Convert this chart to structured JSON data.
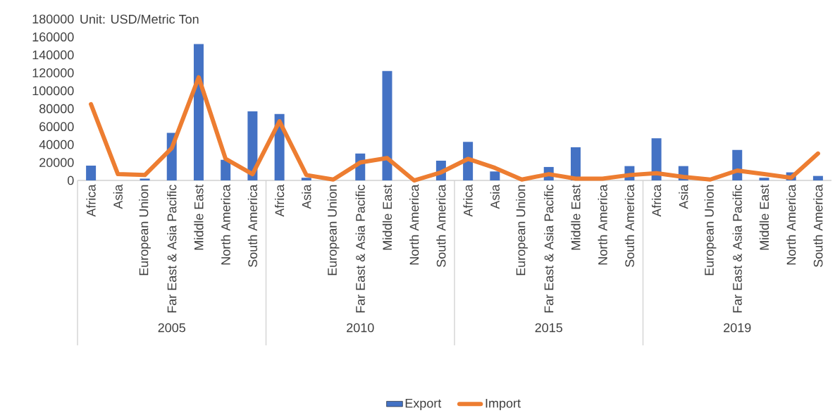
{
  "chart_data": {
    "type": "bar",
    "ylabel": "Unit: USD/Metric Ton",
    "categories": [
      "Africa",
      "Asia",
      "European Union",
      "Far East & Asia Pacific",
      "Middle East",
      "North America",
      "South America",
      "Africa",
      "Asia",
      "European Union",
      "Far East & Asia Pacific",
      "Middle East",
      "North America",
      "South America",
      "Africa",
      "Asia",
      "European Union",
      "Far East & Asia Pacific",
      "Middle East",
      "North America",
      "South America",
      "Africa",
      "Asia",
      "European Union",
      "Far East & Asia Pacific",
      "Middle East",
      "North America",
      "South America"
    ],
    "series": [
      {
        "name": "Export",
        "color": "#4472c4",
        "values": [
          16500,
          0,
          2000,
          53000,
          152000,
          23000,
          77000,
          74000,
          3000,
          0,
          30000,
          122000,
          0,
          22000,
          43000,
          10000,
          0,
          15000,
          37000,
          0,
          16000,
          47000,
          16000,
          0,
          34000,
          3000,
          9000,
          5000
        ]
      },
      {
        "name": "Import",
        "type": "line",
        "color": "#ed7d31",
        "values": [
          85000,
          7000,
          6000,
          36000,
          115000,
          24000,
          7000,
          66000,
          6000,
          1000,
          20000,
          25000,
          0,
          9000,
          24000,
          14000,
          1000,
          7000,
          2000,
          2000,
          6000,
          8000,
          4000,
          1000,
          11000,
          7000,
          3000,
          30000
        ]
      }
    ],
    "annotations": [
      "2005",
      "2010",
      "2015",
      "2019"
    ],
    "ylim": [
      0,
      180000
    ],
    "yticks": [
      0,
      20000,
      40000,
      60000,
      80000,
      100000,
      120000,
      140000,
      160000,
      180000
    ],
    "legend": "bottom"
  }
}
